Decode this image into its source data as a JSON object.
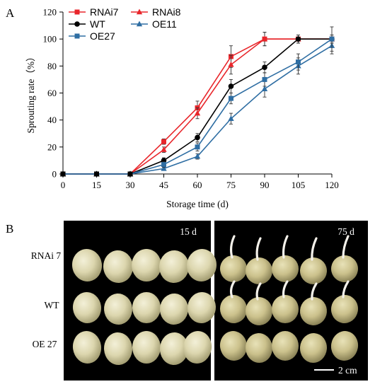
{
  "panel_a_label": "A",
  "panel_b_label": "B",
  "chart_data": {
    "type": "line",
    "xlabel": "Storage time (d)",
    "ylabel": "Sprouting rate（%）",
    "x": [
      0,
      15,
      30,
      45,
      60,
      75,
      90,
      105,
      120
    ],
    "xlim": [
      0,
      120
    ],
    "ylim": [
      0,
      120
    ],
    "xticks": [
      0,
      15,
      30,
      45,
      60,
      75,
      90,
      105,
      120
    ],
    "yticks": [
      0,
      20,
      40,
      60,
      80,
      100,
      120
    ],
    "grid": false,
    "legend_position": "top-left",
    "series": [
      {
        "name": "RNAi7",
        "color": "#e8262b",
        "marker": "square",
        "values": [
          0,
          0,
          0,
          24,
          49,
          87,
          100,
          100,
          100
        ],
        "errors": [
          0,
          0,
          0,
          2,
          5,
          8,
          5,
          3,
          3
        ]
      },
      {
        "name": "RNAi8",
        "color": "#e8262b",
        "marker": "triangle",
        "values": [
          0,
          0,
          0,
          18,
          45,
          81,
          100,
          100,
          100
        ],
        "errors": [
          0,
          0,
          0,
          2,
          4,
          7,
          5,
          3,
          3
        ]
      },
      {
        "name": "WT",
        "color": "#000000",
        "marker": "circle",
        "values": [
          0,
          0,
          0,
          10,
          27,
          65,
          79,
          100,
          100
        ],
        "errors": [
          0,
          0,
          0,
          2,
          3,
          5,
          4,
          3,
          3
        ]
      },
      {
        "name": "OE11",
        "color": "#2f6ea3",
        "marker": "triangle",
        "values": [
          0,
          0,
          0,
          4,
          13,
          41,
          63,
          80,
          95
        ],
        "errors": [
          0,
          0,
          0,
          1,
          2,
          4,
          6,
          6,
          6
        ]
      },
      {
        "name": "OE27",
        "color": "#2f6ea3",
        "marker": "square",
        "values": [
          0,
          0,
          0,
          7,
          20,
          56,
          70,
          83,
          100
        ],
        "errors": [
          0,
          0,
          0,
          2,
          3,
          4,
          5,
          6,
          9
        ]
      }
    ]
  },
  "photos": {
    "left_label": "15 d",
    "right_label": "75 d",
    "row_labels": [
      "RNAi 7",
      "WT",
      "OE 27"
    ],
    "scale_label": "2 cm"
  }
}
